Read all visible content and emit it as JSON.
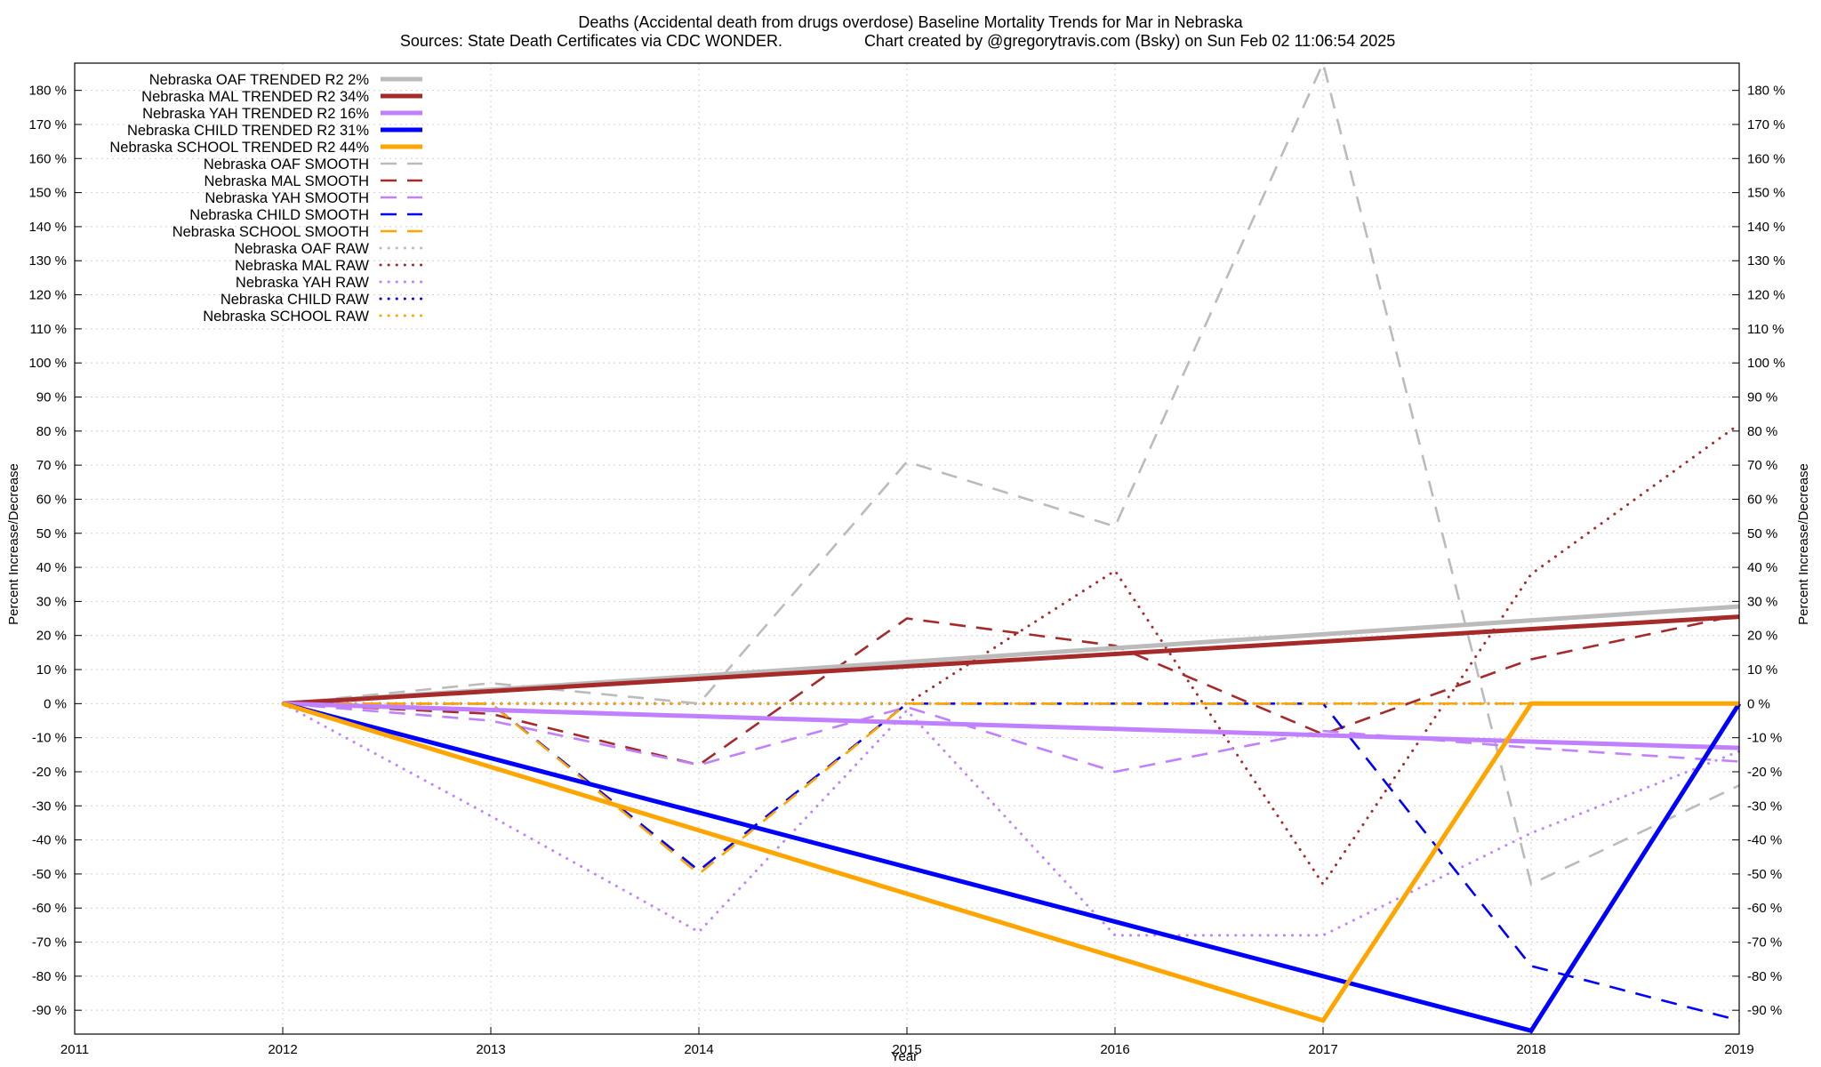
{
  "chart_data": {
    "type": "line",
    "title": "Deaths (Accidental death from drugs overdose)  Baseline Mortality Trends for Mar in Nebraska",
    "subtitle_left": "Sources: State Death Certificates via CDC WONDER.",
    "subtitle_right": "Chart created by @gregorytravis.com (Bsky) on Sun Feb 02 11:06:54 2025",
    "xlabel": "Year",
    "ylabel_left": "Percent Increase/Decrease",
    "ylabel_right": "Percent Increase/Decrease",
    "xlim": [
      2011,
      2019
    ],
    "ylim": [
      -97,
      188
    ],
    "x_ticks": [
      "2011",
      "2012",
      "2013",
      "2014",
      "2015",
      "2016",
      "2017",
      "2018",
      "2019"
    ],
    "y_ticks": [
      "180 %",
      "170 %",
      "160 %",
      "150 %",
      "140 %",
      "130 %",
      "120 %",
      "110 %",
      "100 %",
      "90 %",
      "80 %",
      "70 %",
      "60 %",
      "50 %",
      "40 %",
      "30 %",
      "20 %",
      "10 %",
      "0 %",
      "-10 %",
      "-20 %",
      "-30 %",
      "-40 %",
      "-50 %",
      "-60 %",
      "-70 %",
      "-80 %",
      "-90 %"
    ],
    "grid": true,
    "legend_position": "top-left",
    "series": [
      {
        "name": "Nebraska OAF TRENDED R2  2%",
        "color": "#bbbbbb",
        "style": "solid",
        "x": [
          2012,
          2019
        ],
        "y": [
          0,
          28.5
        ]
      },
      {
        "name": "Nebraska MAL TRENDED R2  34%",
        "color": "#a52a2a",
        "style": "solid",
        "x": [
          2012,
          2019
        ],
        "y": [
          0,
          25.5
        ]
      },
      {
        "name": "Nebraska YAH TRENDED R2  16%",
        "color": "#c080ff",
        "style": "solid",
        "x": [
          2012,
          2019
        ],
        "y": [
          0,
          -13
        ]
      },
      {
        "name": "Nebraska CHILD TRENDED R2  31%",
        "color": "#0000ff",
        "style": "solid",
        "x": [
          2012,
          2018,
          2019
        ],
        "y": [
          0,
          -96,
          0
        ]
      },
      {
        "name": "Nebraska SCHOOL TRENDED R2  44%",
        "color": "#ffa500",
        "style": "solid",
        "x": [
          2012,
          2017,
          2018,
          2019
        ],
        "y": [
          0,
          -93,
          0,
          0
        ]
      },
      {
        "name": "Nebraska OAF SMOOTH",
        "color": "#bbbbbb",
        "style": "dashed",
        "x": [
          2012,
          2013,
          2014,
          2015,
          2016,
          2017,
          2018,
          2019
        ],
        "y": [
          0,
          6,
          0,
          71,
          52,
          190,
          -53,
          -24
        ]
      },
      {
        "name": "Nebraska MAL SMOOTH",
        "color": "#a52a2a",
        "style": "dashed",
        "x": [
          2012,
          2013,
          2014,
          2015,
          2016,
          2017,
          2018,
          2019
        ],
        "y": [
          0,
          -3,
          -18,
          25,
          17,
          -9,
          13,
          26
        ]
      },
      {
        "name": "Nebraska YAH SMOOTH",
        "color": "#c080ff",
        "style": "dashed",
        "x": [
          2012,
          2013,
          2014,
          2015,
          2016,
          2017,
          2018,
          2019
        ],
        "y": [
          0,
          -5,
          -18,
          -1,
          -20,
          -8,
          -13,
          -17
        ]
      },
      {
        "name": "Nebraska CHILD SMOOTH",
        "color": "#0000ff",
        "style": "dashed",
        "x": [
          2012,
          2013,
          2014,
          2015,
          2016,
          2017,
          2018,
          2019
        ],
        "y": [
          0,
          0,
          -49,
          0,
          0,
          0,
          -77,
          -93
        ]
      },
      {
        "name": "Nebraska SCHOOL SMOOTH",
        "color": "#ffa500",
        "style": "dashed",
        "x": [
          2012,
          2013,
          2014,
          2015,
          2016,
          2017,
          2018,
          2019
        ],
        "y": [
          0,
          0,
          -50,
          0,
          0,
          0,
          0,
          0
        ]
      },
      {
        "name": "Nebraska OAF RAW",
        "color": "#bbbbbb",
        "style": "dotted",
        "x": [
          2012,
          2013,
          2014,
          2015,
          2016,
          2017,
          2018,
          2019
        ],
        "y": [
          0,
          0,
          0,
          0,
          0,
          0,
          0,
          0
        ]
      },
      {
        "name": "Nebraska MAL RAW",
        "color": "#a52a2a",
        "style": "dotted",
        "x": [
          2012,
          2013,
          2014,
          2015,
          2016,
          2017,
          2018,
          2019
        ],
        "y": [
          0,
          0,
          0,
          0,
          39,
          -53,
          38,
          82
        ]
      },
      {
        "name": "Nebraska YAH RAW",
        "color": "#c080ff",
        "style": "dotted",
        "x": [
          2012,
          2013,
          2014,
          2015,
          2016,
          2017,
          2018,
          2019
        ],
        "y": [
          0,
          -33,
          -67,
          -2,
          -68,
          -68,
          -38,
          -14
        ]
      },
      {
        "name": "Nebraska CHILD RAW",
        "color": "#0000ff",
        "style": "dotted",
        "x": [
          2012,
          2013,
          2014,
          2015,
          2016,
          2017,
          2018,
          2019
        ],
        "y": [
          0,
          0,
          0,
          0,
          0,
          0,
          0,
          0
        ]
      },
      {
        "name": "Nebraska SCHOOL RAW",
        "color": "#ffa500",
        "style": "dotted",
        "x": [
          2012,
          2013,
          2014,
          2015,
          2016,
          2017,
          2018,
          2019
        ],
        "y": [
          0,
          0,
          0,
          0,
          0,
          0,
          0,
          0
        ]
      }
    ]
  }
}
